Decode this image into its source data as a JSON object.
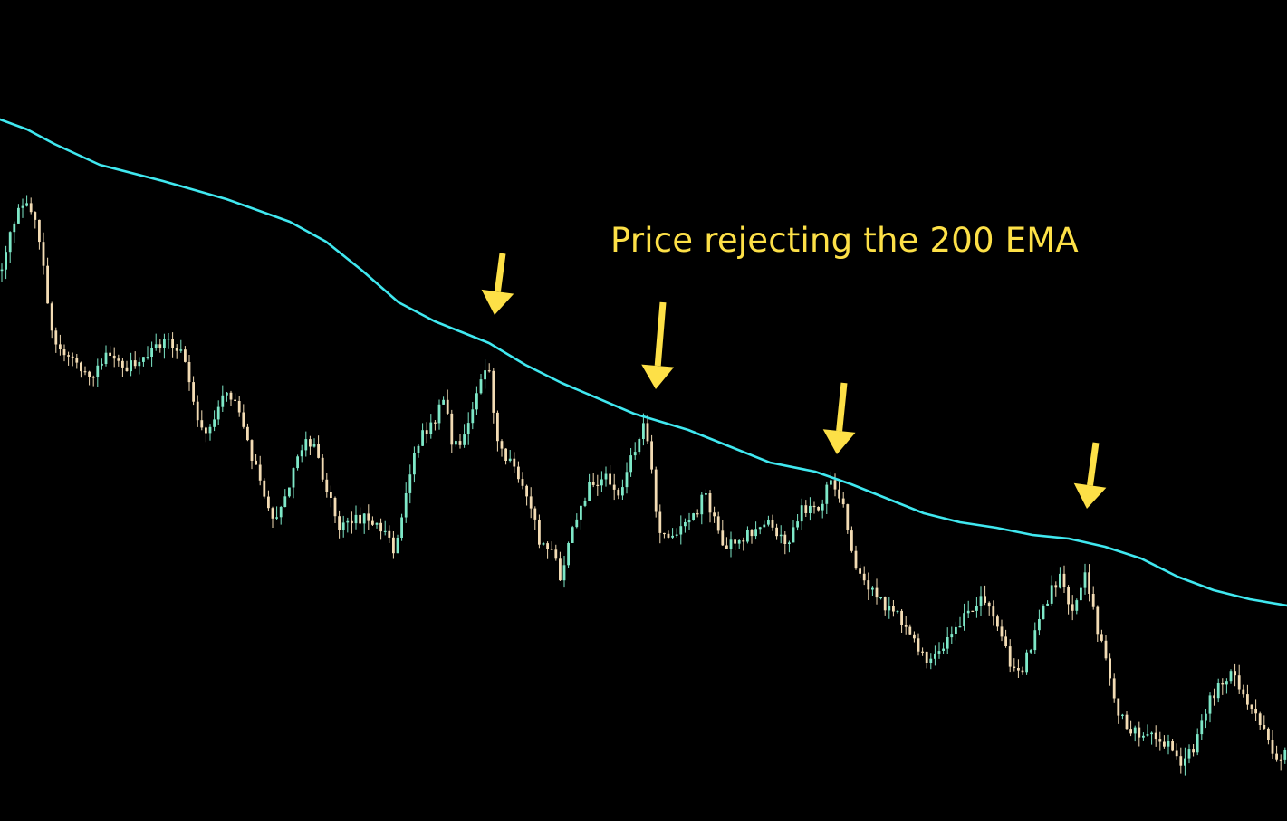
{
  "chart_data": {
    "type": "line",
    "title": "",
    "xlabel": "",
    "ylabel": "",
    "grid": false,
    "background": "#000000",
    "ylim": [
      0,
      907
    ],
    "colors": {
      "ema": "#40e8f0",
      "bull_candle": "#7ee8c8",
      "bear_candle": "#f3dcb4",
      "annotation": "#fde047"
    },
    "series": [
      {
        "kind": "ema",
        "x": [
          0,
          30,
          60,
          110,
          180,
          250,
          320,
          360,
          400,
          440,
          480,
          540,
          580,
          620,
          700,
          760,
          800,
          850,
          900,
          940,
          980,
          1020,
          1060,
          1100,
          1140,
          1180,
          1220,
          1260,
          1300,
          1340,
          1380,
          1421
        ],
        "y": [
          775,
          764,
          748,
          725,
          707,
          687,
          662,
          640,
          608,
          573,
          552,
          528,
          504,
          484,
          450,
          432,
          416,
          396,
          386,
          372,
          356,
          340,
          330,
          324,
          316,
          312,
          303,
          290,
          270,
          255,
          245,
          238
        ]
      },
      {
        "kind": "price",
        "x": [
          0,
          10,
          22,
          35,
          45,
          52,
          60,
          80,
          100,
          120,
          140,
          165,
          185,
          205,
          215,
          225,
          245,
          260,
          275,
          290,
          300,
          315,
          330,
          345,
          360,
          375,
          390,
          405,
          420,
          435,
          450,
          462,
          478,
          490,
          500,
          515,
          530,
          538,
          548,
          565,
          580,
          595,
          612,
          620,
          632,
          652,
          668,
          685,
          700,
          712,
          728,
          745,
          762,
          778,
          790,
          800,
          815,
          832,
          850,
          868,
          885,
          902,
          915,
          930,
          942,
          958,
          975,
          992,
          1008,
          1022,
          1038,
          1055,
          1070,
          1085,
          1100,
          1115,
          1130,
          1145,
          1158,
          1172,
          1185,
          1198,
          1210,
          1222,
          1235,
          1255,
          1275,
          1290,
          1305,
          1318,
          1335,
          1350,
          1362,
          1378,
          1395,
          1410,
          1421
        ],
        "y": [
          600,
          640,
          690,
          670,
          640,
          570,
          530,
          510,
          490,
          520,
          500,
          520,
          530,
          510,
          460,
          420,
          470,
          460,
          410,
          370,
          330,
          360,
          410,
          420,
          370,
          320,
          330,
          340,
          325,
          300,
          370,
          420,
          440,
          470,
          410,
          430,
          480,
          510,
          420,
          395,
          370,
          310,
          295,
          265,
          330,
          370,
          380,
          360,
          410,
          440,
          320,
          320,
          330,
          360,
          330,
          300,
          310,
          320,
          330,
          305,
          345,
          340,
          375,
          360,
          290,
          260,
          240,
          230,
          200,
          180,
          190,
          215,
          230,
          245,
          215,
          175,
          170,
          215,
          250,
          270,
          225,
          270,
          220,
          170,
          120,
          95,
          90,
          85,
          65,
          80,
          130,
          155,
          165,
          130,
          100,
          65,
          85
        ]
      }
    ],
    "annotations": [
      {
        "text": "Price rejecting the 200 EMA"
      }
    ],
    "arrows": [
      {
        "label": "rejection-1",
        "tail": [
          -1,
          627
        ],
        "head": [
          -14,
          557
        ]
      },
      {
        "label": "rejection-2",
        "tail": [
          -1,
          572
        ],
        "head": [
          -14,
          477
        ]
      },
      {
        "label": "rejection-3",
        "tail": [
          -1,
          484
        ],
        "head": [
          -14,
          405
        ]
      },
      {
        "label": "rejection-4",
        "tail": [
          -1,
          418
        ],
        "head": [
          -14,
          345
        ]
      }
    ]
  },
  "annotation": {
    "text": "Price rejecting the 200 EMA"
  }
}
